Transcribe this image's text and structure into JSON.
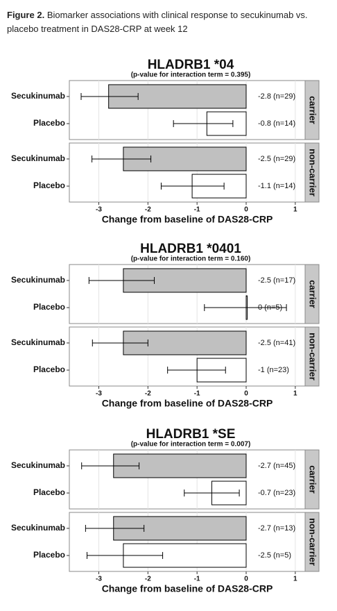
{
  "header": {
    "label": "Figure 2.",
    "caption": "Biomarker associations with clinical response to secukinumab vs. placebo treatment in DAS28-CRP at week 12"
  },
  "chart_data": [
    {
      "type": "bar",
      "orientation": "horizontal",
      "title": "HLADRB1 *04",
      "subtitle": "(p-value for interaction term = 0.395)",
      "xlabel": "Change from baseline of DAS28-CRP",
      "xlim": [
        -3.6,
        1.2
      ],
      "xticks": [
        -3,
        -2,
        -1,
        0,
        1
      ],
      "grid": true,
      "colors": [
        "#c0c0c0",
        "#ffffff"
      ],
      "facets": [
        {
          "name": "carrier",
          "categories": [
            "Secukinumab",
            "Placebo"
          ],
          "values": [
            -2.8,
            -0.8
          ],
          "value_labels": [
            "-2.8 (n=29)",
            "-0.8 (n=14)"
          ],
          "ci_lower": [
            -3.36,
            -1.48
          ],
          "ci_upper": [
            -2.2,
            -0.27
          ]
        },
        {
          "name": "non-carrier",
          "categories": [
            "Secukinumab",
            "Placebo"
          ],
          "values": [
            -2.5,
            -1.1
          ],
          "value_labels": [
            "-2.5 (n=29)",
            "-1.1 (n=14)"
          ],
          "ci_lower": [
            -3.14,
            -1.73
          ],
          "ci_upper": [
            -1.94,
            -0.45
          ]
        }
      ]
    },
    {
      "type": "bar",
      "orientation": "horizontal",
      "title": "HLADRB1 *0401",
      "subtitle": "(p-value for interaction term = 0.160)",
      "xlabel": "Change from baseline of DAS28-CRP",
      "xlim": [
        -3.6,
        1.2
      ],
      "xticks": [
        -3,
        -2,
        -1,
        0,
        1
      ],
      "grid": true,
      "colors": [
        "#c0c0c0",
        "#ffffff"
      ],
      "facets": [
        {
          "name": "carrier",
          "categories": [
            "Secukinumab",
            "Placebo"
          ],
          "values": [
            -2.5,
            0
          ],
          "value_labels": [
            "-2.5 (n=17)",
            "0 (n=5)"
          ],
          "ci_lower": [
            -3.2,
            -0.85
          ],
          "ci_upper": [
            -1.87,
            0.82
          ]
        },
        {
          "name": "non-carrier",
          "categories": [
            "Secukinumab",
            "Placebo"
          ],
          "values": [
            -2.5,
            -1
          ],
          "value_labels": [
            "-2.5 (n=41)",
            "-1 (n=23)"
          ],
          "ci_lower": [
            -3.13,
            -1.6
          ],
          "ci_upper": [
            -2.0,
            -0.42
          ]
        }
      ]
    },
    {
      "type": "bar",
      "orientation": "horizontal",
      "title": "HLADRB1 *SE",
      "subtitle": "(p-value for interaction term = 0.007)",
      "xlabel": "Change from baseline of DAS28-CRP",
      "xlim": [
        -3.6,
        1.2
      ],
      "xticks": [
        -3,
        -2,
        -1,
        0,
        1
      ],
      "grid": true,
      "colors": [
        "#c0c0c0",
        "#ffffff"
      ],
      "facets": [
        {
          "name": "carrier",
          "categories": [
            "Secukinumab",
            "Placebo"
          ],
          "values": [
            -2.7,
            -0.7
          ],
          "value_labels": [
            "-2.7 (n=45)",
            "-0.7 (n=23)"
          ],
          "ci_lower": [
            -3.35,
            -1.26
          ],
          "ci_upper": [
            -2.18,
            -0.14
          ]
        },
        {
          "name": "non-carrier",
          "categories": [
            "Secukinumab",
            "Placebo"
          ],
          "values": [
            -2.7,
            -2.5
          ],
          "value_labels": [
            "-2.7 (n=13)",
            "-2.5 (n=5)"
          ],
          "ci_lower": [
            -3.27,
            -3.24
          ],
          "ci_upper": [
            -2.08,
            -1.7
          ]
        }
      ]
    }
  ]
}
